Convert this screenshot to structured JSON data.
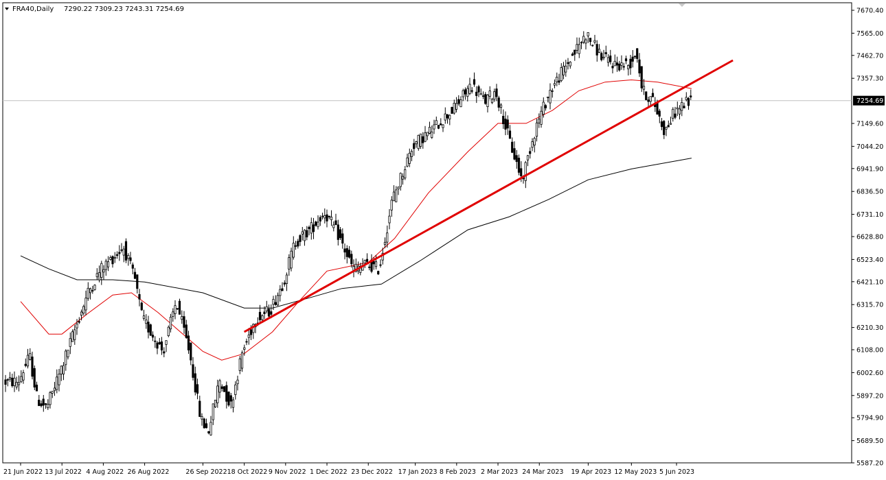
{
  "header": {
    "symbol": "FRA40,Daily",
    "ohlc": "7290.22 7309.23 7243.31 7254.69"
  },
  "chart_data": {
    "type": "candlestick",
    "symbol": "FRA40",
    "timeframe": "Daily",
    "ylim": [
      5540,
      7700
    ],
    "y_ticks": [
      "7670.40",
      "7565.00",
      "7462.70",
      "7357.30",
      "7254.69",
      "7149.60",
      "7044.20",
      "6941.90",
      "6836.50",
      "6731.10",
      "6628.80",
      "6523.40",
      "6421.10",
      "6315.70",
      "6210.30",
      "6108.00",
      "6002.60",
      "5897.20",
      "5794.90",
      "5689.50",
      "5587.20"
    ],
    "x_ticks": [
      "21 Jun 2022",
      "13 Jul 2022",
      "4 Aug 2022",
      "26 Aug 2022",
      "26 Sep 2022",
      "18 Oct 2022",
      "9 Nov 2022",
      "1 Dec 2022",
      "23 Dec 2022",
      "17 Jan 2023",
      "8 Feb 2023",
      "2 Mar 2023",
      "24 Mar 2023",
      "19 Apr 2023",
      "12 May 2023",
      "5 Jun 2023"
    ],
    "current_price": "7254.69",
    "price_keypoints": [
      [
        "21 Jun 2022",
        5960
      ],
      [
        "27 Jun 2022",
        6080
      ],
      [
        "1 Jul 2022",
        5880
      ],
      [
        "6 Jul 2022",
        5840
      ],
      [
        "13 Jul 2022",
        6000
      ],
      [
        "19 Jul 2022",
        6150
      ],
      [
        "28 Jul 2022",
        6370
      ],
      [
        "4 Aug 2022",
        6480
      ],
      [
        "16 Aug 2022",
        6580
      ],
      [
        "22 Aug 2022",
        6430
      ],
      [
        "26 Aug 2022",
        6250
      ],
      [
        "6 Sep 2022",
        6100
      ],
      [
        "13 Sep 2022",
        6330
      ],
      [
        "20 Sep 2022",
        6100
      ],
      [
        "26 Sep 2022",
        5790
      ],
      [
        "30 Sep 2022",
        5730
      ],
      [
        "6 Oct 2022",
        5970
      ],
      [
        "12 Oct 2022",
        5850
      ],
      [
        "18 Oct 2022",
        6090
      ],
      [
        "25 Oct 2022",
        6250
      ],
      [
        "2 Nov 2022",
        6290
      ],
      [
        "9 Nov 2022",
        6420
      ],
      [
        "15 Nov 2022",
        6600
      ],
      [
        "23 Nov 2022",
        6660
      ],
      [
        "1 Dec 2022",
        6740
      ],
      [
        "8 Dec 2022",
        6640
      ],
      [
        "16 Dec 2022",
        6480
      ],
      [
        "23 Dec 2022",
        6500
      ],
      [
        "30 Dec 2022",
        6480
      ],
      [
        "6 Jan 2023",
        6800
      ],
      [
        "17 Jan 2023",
        7050
      ],
      [
        "27 Jan 2023",
        7120
      ],
      [
        "8 Feb 2023",
        7220
      ],
      [
        "17 Feb 2023",
        7330
      ],
      [
        "24 Feb 2023",
        7250
      ],
      [
        "2 Mar 2023",
        7300
      ],
      [
        "10 Mar 2023",
        7050
      ],
      [
        "16 Mar 2023",
        6890
      ],
      [
        "21 Mar 2023",
        7060
      ],
      [
        "24 Mar 2023",
        7150
      ],
      [
        "31 Mar 2023",
        7300
      ],
      [
        "11 Apr 2023",
        7450
      ],
      [
        "19 Apr 2023",
        7560
      ],
      [
        "24 Apr 2023",
        7500
      ],
      [
        "28 Apr 2023",
        7450
      ],
      [
        "5 May 2023",
        7420
      ],
      [
        "12 May 2023",
        7420
      ],
      [
        "16 May 2023",
        7480
      ],
      [
        "19 May 2023",
        7300
      ],
      [
        "25 May 2023",
        7250
      ],
      [
        "31 May 2023",
        7110
      ],
      [
        "5 Jun 2023",
        7200
      ],
      [
        "9 Jun 2023",
        7230
      ],
      [
        "13 Jun 2023",
        7254.69
      ]
    ],
    "ma_fast_keypoints": [
      [
        "21 Jun 2022",
        6330
      ],
      [
        "6 Jul 2022",
        6180
      ],
      [
        "13 Jul 2022",
        6180
      ],
      [
        "26 Jul 2022",
        6270
      ],
      [
        "9 Aug 2022",
        6360
      ],
      [
        "19 Aug 2022",
        6370
      ],
      [
        "2 Sep 2022",
        6280
      ],
      [
        "26 Sep 2022",
        6100
      ],
      [
        "6 Oct 2022",
        6060
      ],
      [
        "18 Oct 2022",
        6090
      ],
      [
        "2 Nov 2022",
        6190
      ],
      [
        "16 Nov 2022",
        6330
      ],
      [
        "1 Dec 2022",
        6470
      ],
      [
        "23 Dec 2022",
        6510
      ],
      [
        "6 Jan 2023",
        6620
      ],
      [
        "24 Jan 2023",
        6830
      ],
      [
        "14 Feb 2023",
        7020
      ],
      [
        "2 Mar 2023",
        7150
      ],
      [
        "17 Mar 2023",
        7150
      ],
      [
        "31 Mar 2023",
        7210
      ],
      [
        "14 Apr 2023",
        7300
      ],
      [
        "28 Apr 2023",
        7340
      ],
      [
        "12 May 2023",
        7350
      ],
      [
        "26 May 2023",
        7340
      ],
      [
        "13 Jun 2023",
        7310
      ]
    ],
    "ma_slow_keypoints": [
      [
        "21 Jun 2022",
        6540
      ],
      [
        "6 Jul 2022",
        6480
      ],
      [
        "21 Jul 2022",
        6430
      ],
      [
        "9 Aug 2022",
        6430
      ],
      [
        "26 Aug 2022",
        6420
      ],
      [
        "26 Sep 2022",
        6370
      ],
      [
        "18 Oct 2022",
        6300
      ],
      [
        "2 Nov 2022",
        6300
      ],
      [
        "23 Nov 2022",
        6350
      ],
      [
        "9 Dec 2022",
        6390
      ],
      [
        "30 Dec 2022",
        6410
      ],
      [
        "20 Jan 2023",
        6520
      ],
      [
        "14 Feb 2023",
        6660
      ],
      [
        "8 Mar 2023",
        6720
      ],
      [
        "29 Mar 2023",
        6800
      ],
      [
        "19 Apr 2023",
        6890
      ],
      [
        "12 May 2023",
        6940
      ],
      [
        "13 Jun 2023",
        6990
      ]
    ],
    "trendline": [
      [
        "18 Oct 2022",
        6190
      ],
      [
        "5 Jul 2023",
        7440
      ]
    ],
    "colors": {
      "candles": "#000000",
      "ma_fast": "#e00000",
      "ma_slow": "#000000",
      "trendline": "#e00000",
      "price_label_bg": "#000000",
      "price_label_text": "#ffffff",
      "current_line": "#c0c0c0"
    },
    "grid": false
  }
}
